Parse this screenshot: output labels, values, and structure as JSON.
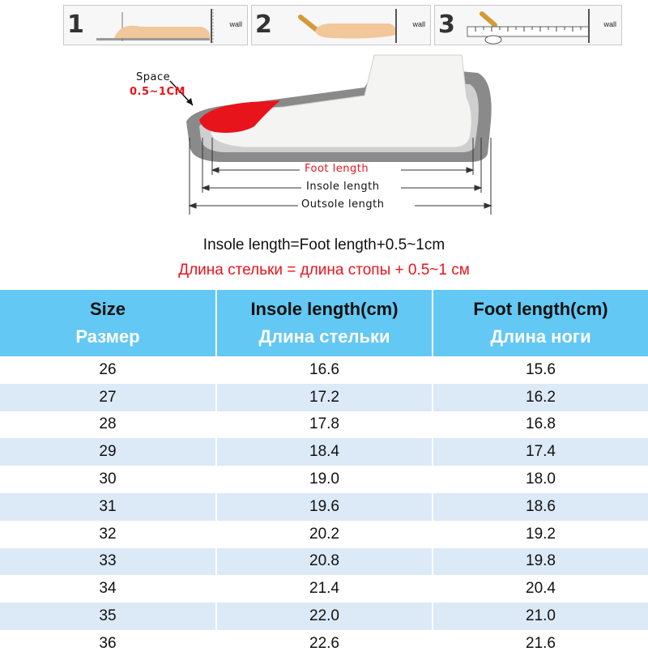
{
  "steps": [
    {
      "num": "1",
      "wall": "wall"
    },
    {
      "num": "2",
      "wall": "wall"
    },
    {
      "num": "3",
      "wall": "wall"
    }
  ],
  "diagram": {
    "space_label": "Space",
    "space_value": "0.5~1CM",
    "foot_length": "Foot length",
    "insole_length": "Insole length",
    "outsole_length": "Outsole length"
  },
  "formula": {
    "en": "Insole length=Foot length+0.5~1cm",
    "ru": "Длина стельки = длина стопы + 0.5~1 см"
  },
  "table": {
    "headers": [
      {
        "en": "Size",
        "ru": "Размер"
      },
      {
        "en": "Insole length(cm)",
        "ru": "Длина стельки"
      },
      {
        "en": "Foot length(cm)",
        "ru": "Длина ноги"
      }
    ],
    "rows": [
      [
        "26",
        "16.6",
        "15.6"
      ],
      [
        "27",
        "17.2",
        "16.2"
      ],
      [
        "28",
        "17.8",
        "16.8"
      ],
      [
        "29",
        "18.4",
        "17.4"
      ],
      [
        "30",
        "19.0",
        "18.0"
      ],
      [
        "31",
        "19.6",
        "18.6"
      ],
      [
        "32",
        "20.2",
        "19.2"
      ],
      [
        "33",
        "20.8",
        "19.8"
      ],
      [
        "34",
        "21.4",
        "20.4"
      ],
      [
        "35",
        "22.0",
        "21.0"
      ],
      [
        "36",
        "22.6",
        "21.6"
      ]
    ]
  },
  "colors": {
    "header_bg": "#63c8f3",
    "row_alt": "#dce9f6",
    "accent_red": "#e8141c"
  }
}
